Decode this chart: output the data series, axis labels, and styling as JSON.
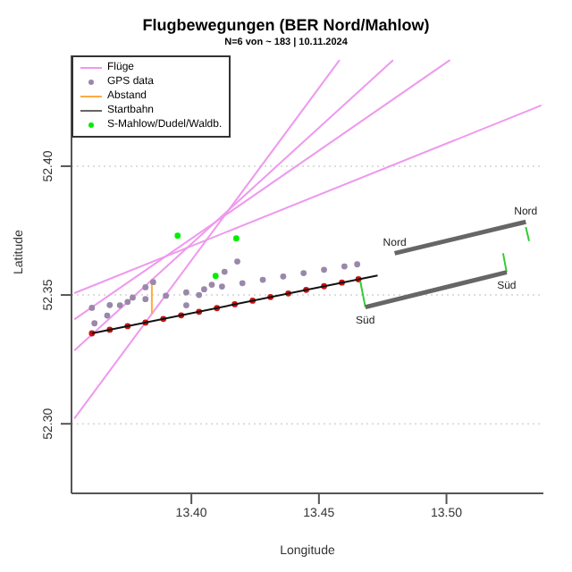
{
  "chart_data": {
    "type": "scatter",
    "title": "Flugbewegungen (BER Nord/Mahlow)",
    "subtitle": "N=6 von ~ 183 | 10.11.2024",
    "xlabel": "Longitude",
    "ylabel": "Latitude",
    "xlim": [
      13.353,
      13.538
    ],
    "ylim": [
      52.273,
      52.443
    ],
    "xticks": [
      {
        "value": 13.4,
        "label": "13.40"
      },
      {
        "value": 13.45,
        "label": "13.45"
      },
      {
        "value": 13.5,
        "label": "13.50"
      }
    ],
    "yticks": [
      {
        "value": 52.3,
        "label": "52.30"
      },
      {
        "value": 52.35,
        "label": "52.35"
      },
      {
        "value": 52.4,
        "label": "52.40"
      }
    ],
    "grid": "y",
    "legend": "top left",
    "series": [
      {
        "type": "line",
        "name": "Flüge",
        "color": "#ee99ee",
        "x": [
          13.3541,
          13.4581
        ],
        "values": [
          52.302,
          52.4412
        ]
      },
      {
        "type": "line",
        "color": "#ee99ee",
        "x": [
          13.3541,
          13.4791
        ],
        "values": [
          52.3284,
          52.4412
        ]
      },
      {
        "type": "line",
        "color": "#ee99ee",
        "x": [
          13.3541,
          13.5014
        ],
        "values": [
          52.3405,
          52.4412
        ]
      },
      {
        "type": "line",
        "color": "#ee99ee",
        "x": [
          13.3541,
          13.5372
        ],
        "values": [
          52.3507,
          52.4236
        ]
      },
      {
        "name": "GPS data",
        "color": "#9a88aa",
        "x": [
          13.361,
          13.368,
          13.375,
          13.382,
          13.39,
          13.398,
          13.405,
          13.412,
          13.42,
          13.428,
          13.436,
          13.444,
          13.452,
          13.46,
          13.465,
          13.362,
          13.367,
          13.372,
          13.377,
          13.382,
          13.385,
          13.398,
          13.403,
          13.408,
          13.413,
          13.418
        ],
        "values": [
          52.345,
          52.3461,
          52.3473,
          52.3484,
          52.3497,
          52.351,
          52.3522,
          52.3533,
          52.3546,
          52.3559,
          52.3572,
          52.3585,
          52.3598,
          52.3611,
          52.3619,
          52.339,
          52.342,
          52.346,
          52.349,
          52.353,
          52.355,
          52.346,
          52.35,
          52.354,
          52.359,
          52.363
        ]
      },
      {
        "color": "#cc1111",
        "x": [
          13.361,
          13.368,
          13.375,
          13.382,
          13.389,
          13.396,
          13.403,
          13.41,
          13.417,
          13.424,
          13.431,
          13.438,
          13.445,
          13.452,
          13.459,
          13.4655
        ],
        "values": [
          52.3351,
          52.3365,
          52.3379,
          52.3393,
          52.3407,
          52.3421,
          52.3435,
          52.3449,
          52.3464,
          52.3478,
          52.3492,
          52.3506,
          52.352,
          52.3534,
          52.3548,
          52.3561
        ]
      },
      {
        "type": "line",
        "color": "#111111",
        "x": [
          13.361,
          13.473
        ],
        "values": [
          52.3351,
          52.3576
        ]
      },
      {
        "type": "line",
        "name": "Abstand",
        "color": "#ffaa44",
        "x": [
          13.3845,
          13.3845
        ],
        "values": [
          52.354,
          52.3426
        ]
      },
      {
        "type": "line",
        "color": "#33cc33",
        "x": [
          13.4662,
          13.4682
        ],
        "values": [
          52.3554,
          52.3453
        ]
      },
      {
        "type": "line",
        "color": "#33cc33",
        "x": [
          13.5222,
          13.5236
        ],
        "values": [
          52.3662,
          52.3588
        ]
      },
      {
        "type": "line",
        "color": "#33cc33",
        "x": [
          13.5311,
          13.5324
        ],
        "values": [
          52.3764,
          52.3709
        ]
      },
      {
        "type": "line",
        "name": "Startbahn",
        "color": "#666666",
        "x": [
          13.4797,
          13.5311
        ],
        "values": [
          52.3662,
          52.3784
        ]
      },
      {
        "type": "line",
        "color": "#666666",
        "x": [
          13.4682,
          13.5236
        ],
        "values": [
          52.3453,
          52.3588
        ]
      },
      {
        "name": "S-Mahlow/Dudel/Waldb.",
        "color": "#00ee00",
        "x": [
          13.3946,
          13.4176,
          13.4095
        ],
        "values": [
          52.373,
          52.372,
          52.3574
        ]
      }
    ],
    "annotations": [
      {
        "text": "Nord",
        "x": 13.4797,
        "y": 52.3662
      },
      {
        "text": "Nord",
        "x": 13.5311,
        "y": 52.3784
      },
      {
        "text": "Süd",
        "x": 13.4682,
        "y": 52.3453
      },
      {
        "text": "Süd",
        "x": 13.5236,
        "y": 52.3588
      }
    ]
  }
}
